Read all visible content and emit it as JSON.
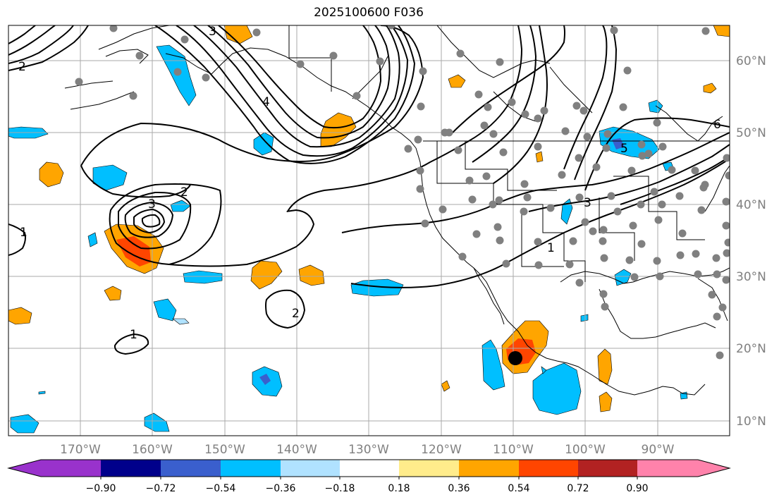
{
  "title": "2025100600 F036",
  "longitude_labels": [
    "170°W",
    "160°W",
    "150°W",
    "140°W",
    "130°W",
    "120°W",
    "110°W",
    "100°W",
    "90°W"
  ],
  "latitude_labels": [
    "60°N",
    "50°N",
    "40°N",
    "30°N",
    "20°N",
    "10°N"
  ],
  "colorbar": {
    "tick_labels": [
      "−0.90",
      "−0.72",
      "−0.54",
      "−0.36",
      "−0.18",
      "0.18",
      "0.36",
      "0.54",
      "0.72",
      "0.90"
    ],
    "colors": [
      "#9932cc",
      "#00008b",
      "#3a5fcd",
      "#00bfff",
      "#b0e2ff",
      "#ffffff",
      "#ffec8b",
      "#ffa500",
      "#ff4500",
      "#b22222",
      "#ff82ab"
    ]
  },
  "contour_labels": [
    "1",
    "1",
    "2",
    "2",
    "3",
    "3",
    "4",
    "5",
    "6",
    "1",
    "2",
    "3"
  ],
  "grid_color": "#aaaaaa",
  "station_color": "#808080",
  "marker_color": "#000000"
}
